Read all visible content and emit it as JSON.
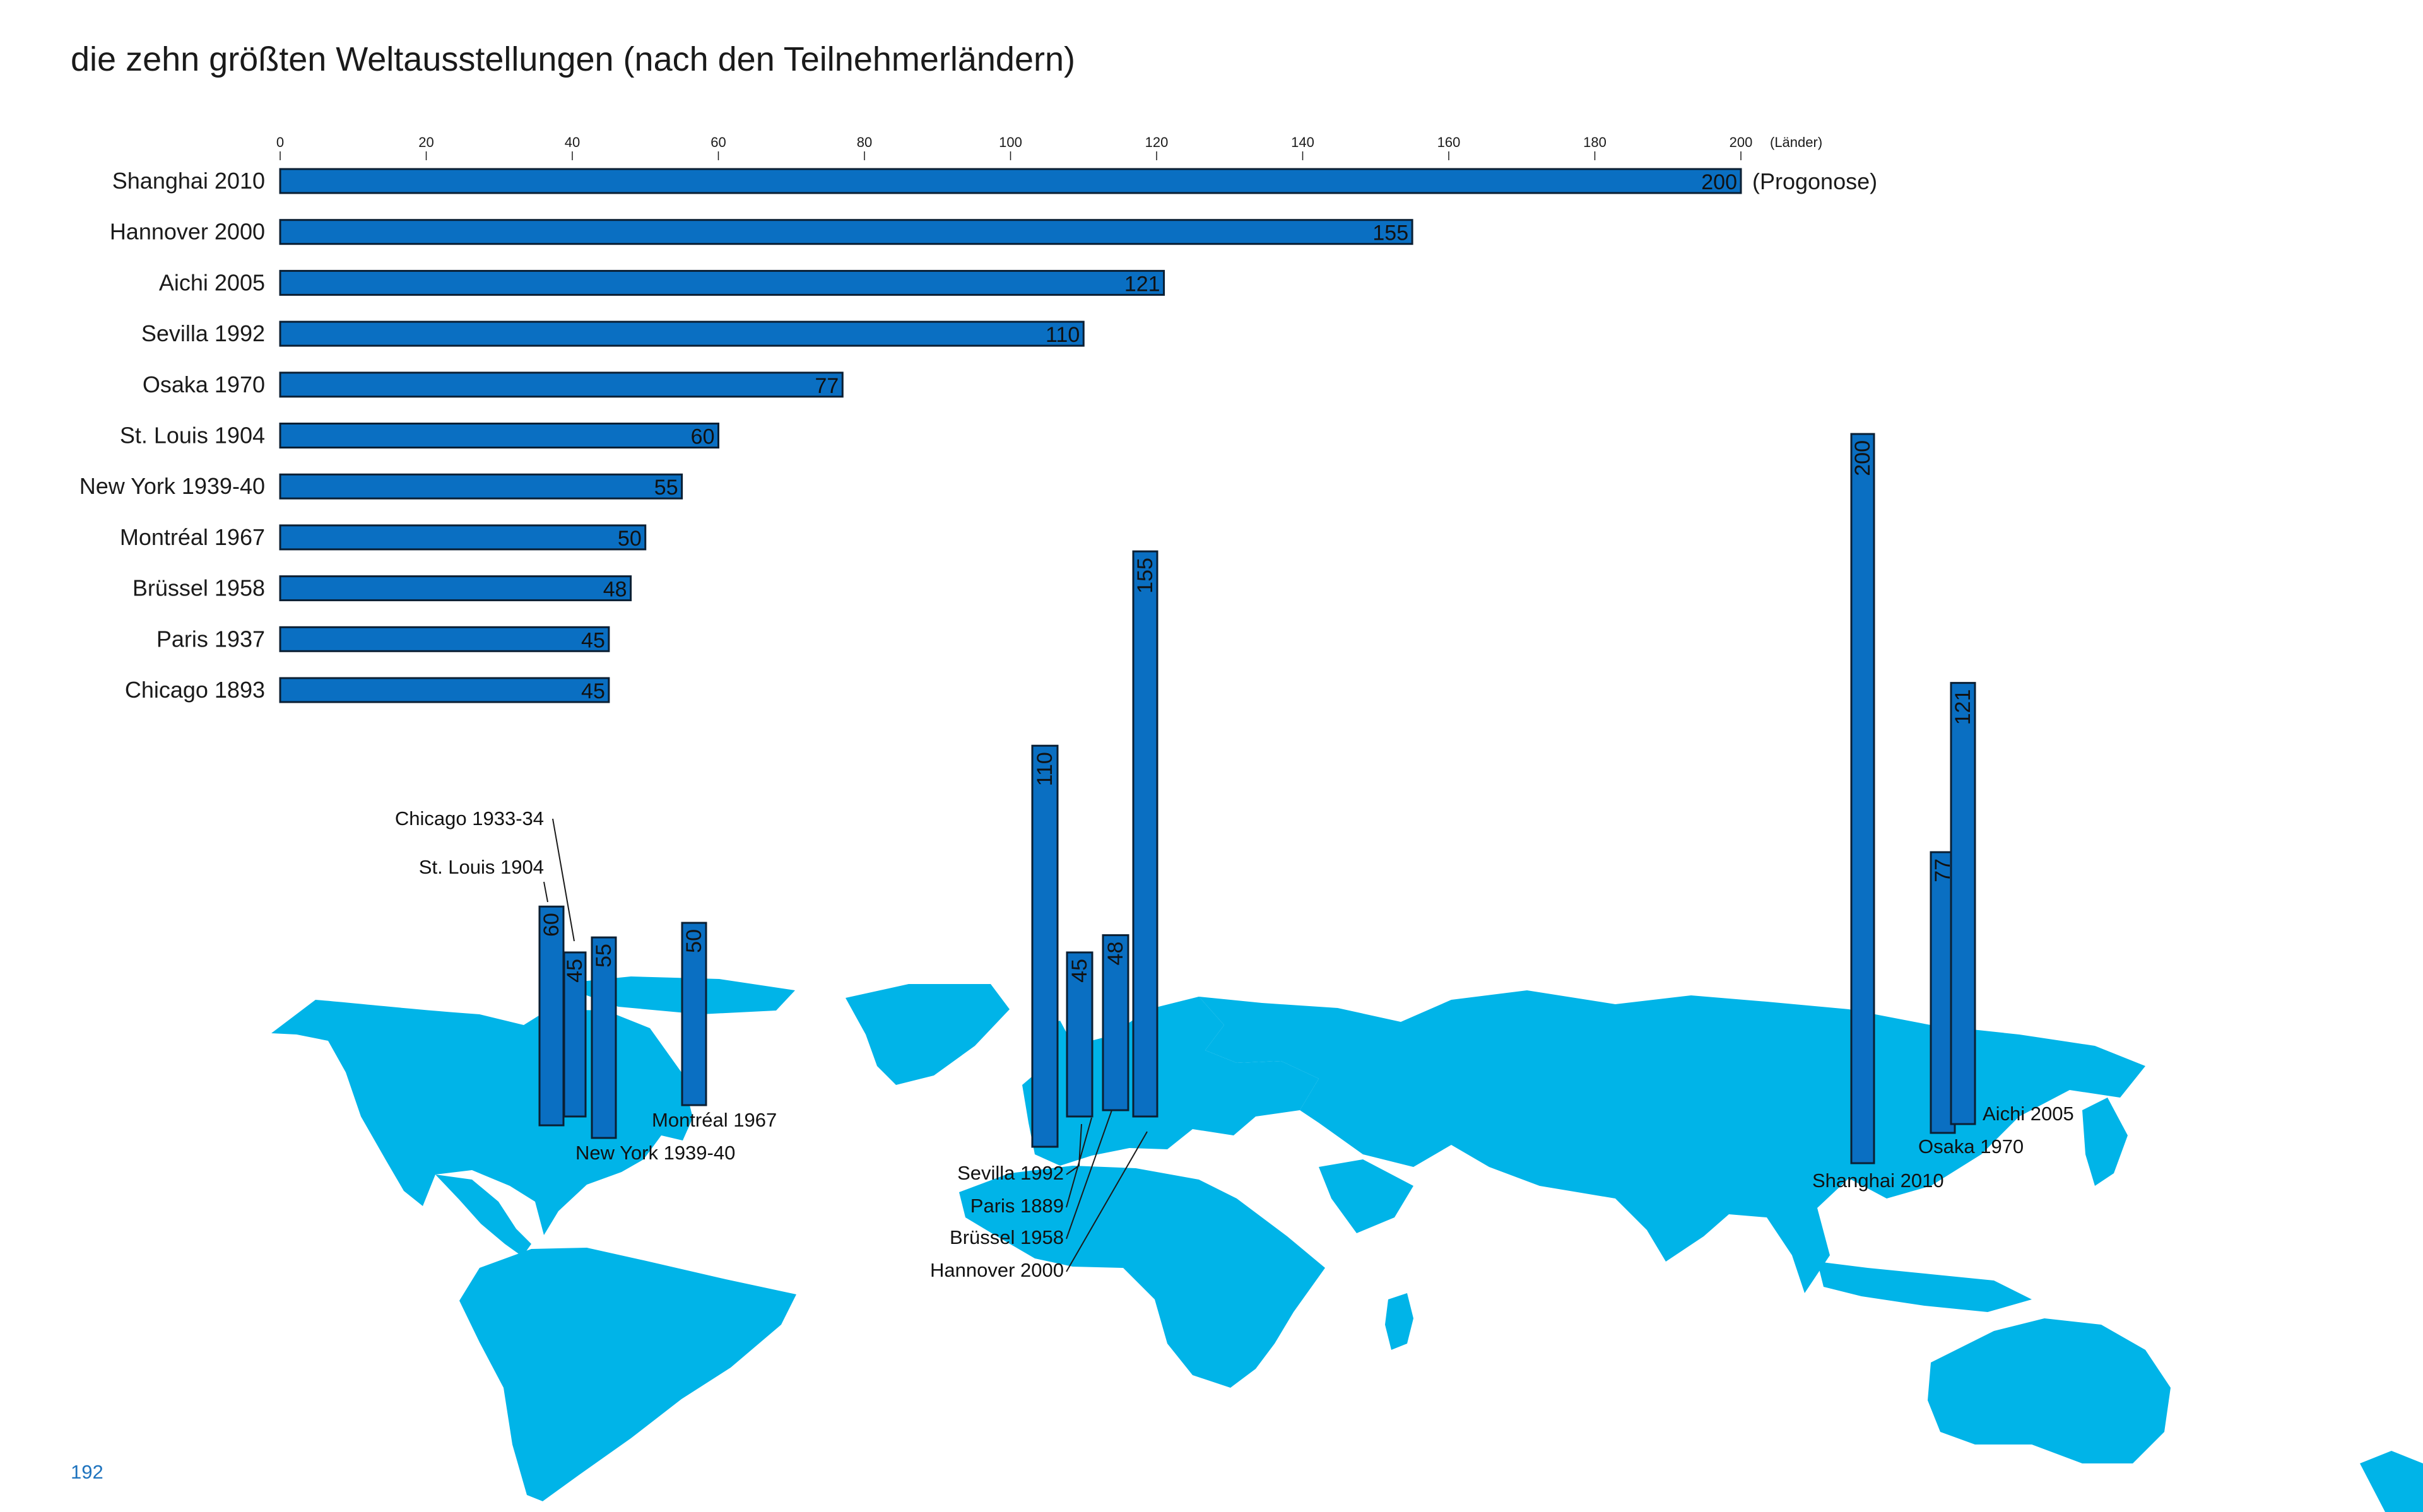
{
  "page": {
    "title": "die zehn größten Weltausstellungen (nach den Teilnehmerländern)",
    "page_number": "192"
  },
  "colors": {
    "bar": "#0a6fc2",
    "bar_stroke": "#0b1f33",
    "map": "#00b4e8",
    "text": "#1a1a1a",
    "page_number": "#1e73be"
  },
  "chart_data": [
    {
      "type": "bar",
      "orientation": "horizontal",
      "title": "die zehn größten Weltausstellungen (nach den Teilnehmerländern)",
      "unit_label": "(Länder)",
      "xlim": [
        0,
        200
      ],
      "ticks": [
        0,
        20,
        40,
        60,
        80,
        100,
        120,
        140,
        160,
        180,
        200
      ],
      "grid": false,
      "categories": [
        "Shanghai 2010",
        "Hannover 2000",
        "Aichi 2005",
        "Sevilla 1992",
        "Osaka 1970",
        "St. Louis 1904",
        "New York 1939-40",
        "Montréal 1967",
        "Brüssel 1958",
        "Paris 1937",
        "Chicago 1893"
      ],
      "values": [
        200,
        155,
        121,
        110,
        77,
        60,
        55,
        50,
        48,
        45,
        45
      ],
      "annotations": [
        {
          "category": "Shanghai 2010",
          "text": "(Progonose)"
        }
      ]
    },
    {
      "type": "bar",
      "orientation": "vertical",
      "background": "world map",
      "bars": [
        {
          "label": "St. Louis 1904",
          "value": 60
        },
        {
          "label": "Chicago 1933-34",
          "value": 45
        },
        {
          "label": "New York 1939-40",
          "value": 55
        },
        {
          "label": "Montréal 1967",
          "value": 50
        },
        {
          "label": "Sevilla 1992",
          "value": 110
        },
        {
          "label": "Paris 1889",
          "value": 45
        },
        {
          "label": "Brüssel 1958",
          "value": 48
        },
        {
          "label": "Hannover 2000",
          "value": 155
        },
        {
          "label": "Shanghai 2010",
          "value": 200
        },
        {
          "label": "Osaka 1970",
          "value": 77
        },
        {
          "label": "Aichi 2005",
          "value": 121
        }
      ]
    }
  ]
}
